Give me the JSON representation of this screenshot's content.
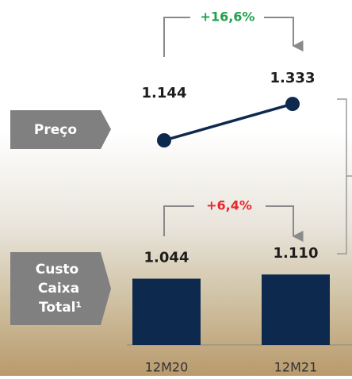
{
  "chart_data": [
    {
      "type": "line",
      "label": "Preço",
      "categories": [
        "12M20",
        "12M21"
      ],
      "values": [
        1144,
        1333
      ],
      "value_labels": [
        "1.144",
        "1.333"
      ],
      "annotation": "+16,6%",
      "annotation_color": "#22a04b",
      "color": "#0d2a4e"
    },
    {
      "type": "bar",
      "label_lines": [
        "Custo",
        "Caixa",
        "Total¹"
      ],
      "categories": [
        "12M20",
        "12M21"
      ],
      "values": [
        1044,
        1110
      ],
      "value_labels": [
        "1.044",
        "1.110"
      ],
      "annotation": "+6,4%",
      "annotation_color": "#e8262b",
      "color": "#0d2a4e"
    }
  ]
}
